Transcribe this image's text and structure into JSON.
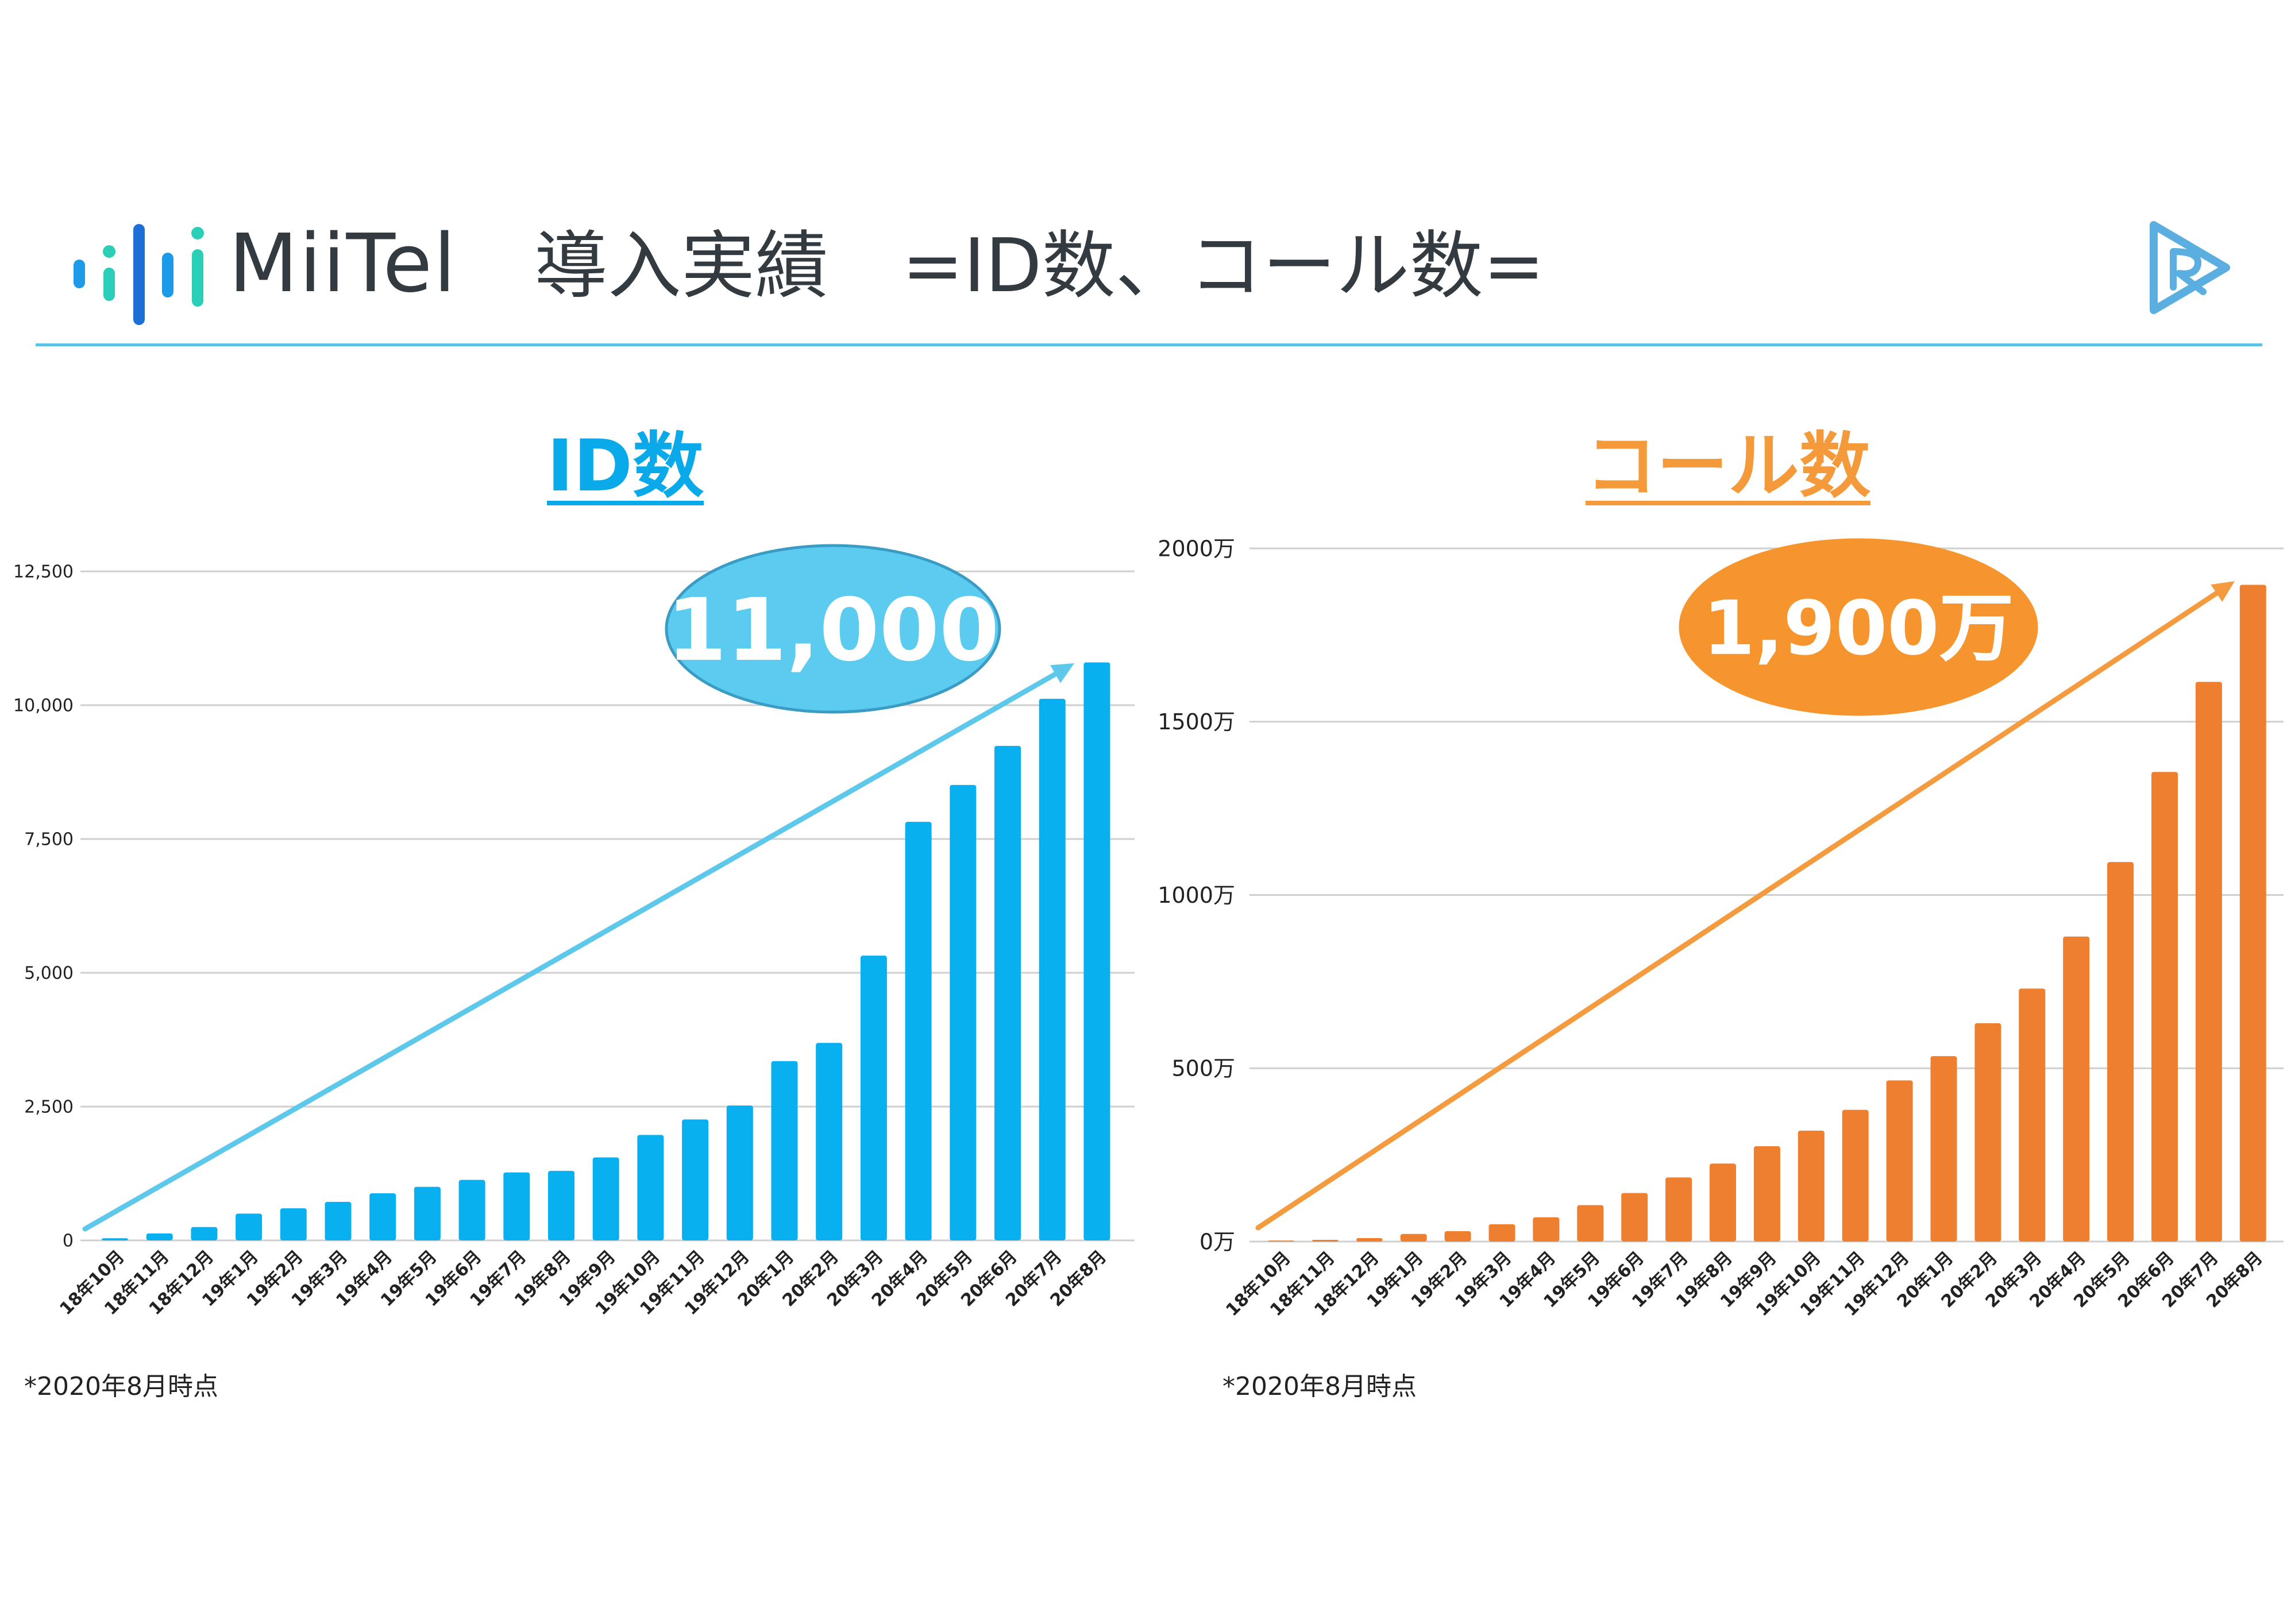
{
  "header": {
    "logo_text": "MiiTel",
    "title": "導入実績　=ID数、コール数="
  },
  "colors": {
    "id_bar": "#08b0ef",
    "id_arrow": "#5dc8ea",
    "id_bubble": "#5ccbf0",
    "call_bar": "#ee7f2e",
    "call_arrow": "#f39b3e",
    "call_bubble": "#f6952e",
    "divider": "#5bc3e6"
  },
  "chart_data": [
    {
      "type": "bar",
      "title": "ID数",
      "categories": [
        "18年10月",
        "18年11月",
        "18年12月",
        "19年1月",
        "19年2月",
        "19年3月",
        "19年4月",
        "19年5月",
        "19年6月",
        "19年7月",
        "19年8月",
        "19年9月",
        "19年10月",
        "19年11月",
        "19年12月",
        "20年1月",
        "20年2月",
        "20年3月",
        "20年4月",
        "20年5月",
        "20年6月",
        "20年7月",
        "20年8月"
      ],
      "values": [
        40,
        130,
        250,
        500,
        600,
        720,
        880,
        1000,
        1130,
        1270,
        1300,
        1550,
        1970,
        2260,
        2520,
        3350,
        3690,
        5320,
        7820,
        8510,
        9240,
        10120,
        10800
      ],
      "ylim": [
        0,
        12500
      ],
      "yticks": [
        0,
        2500,
        5000,
        7500,
        10000,
        12500
      ],
      "ytick_labels": [
        "0",
        "2,500",
        "5,000",
        "7,500",
        "10,000",
        "12,500"
      ],
      "grid": true,
      "annotation": "11,000",
      "note": "*2020年8月時点"
    },
    {
      "type": "bar",
      "title": "コール数",
      "categories": [
        "18年10月",
        "18年11月",
        "18年12月",
        "19年1月",
        "19年2月",
        "19年3月",
        "19年4月",
        "19年5月",
        "19年6月",
        "19年7月",
        "19年8月",
        "19年9月",
        "19年10月",
        "19年11月",
        "19年12月",
        "20年1月",
        "20年2月",
        "20年3月",
        "20年4月",
        "20年5月",
        "20年6月",
        "20年7月",
        "20年8月"
      ],
      "values": [
        3,
        5,
        10,
        22,
        30,
        50,
        70,
        105,
        140,
        185,
        225,
        275,
        320,
        380,
        465,
        535,
        630,
        730,
        880,
        1095,
        1355,
        1615,
        1895
      ],
      "ylim": [
        0,
        2000
      ],
      "yticks": [
        0,
        500,
        1000,
        1500,
        2000
      ],
      "ytick_labels": [
        "0万",
        "500万",
        "1000万",
        "1500万",
        "2000万"
      ],
      "grid": true,
      "annotation": "1,900万",
      "note": "*2020年8月時点"
    }
  ]
}
